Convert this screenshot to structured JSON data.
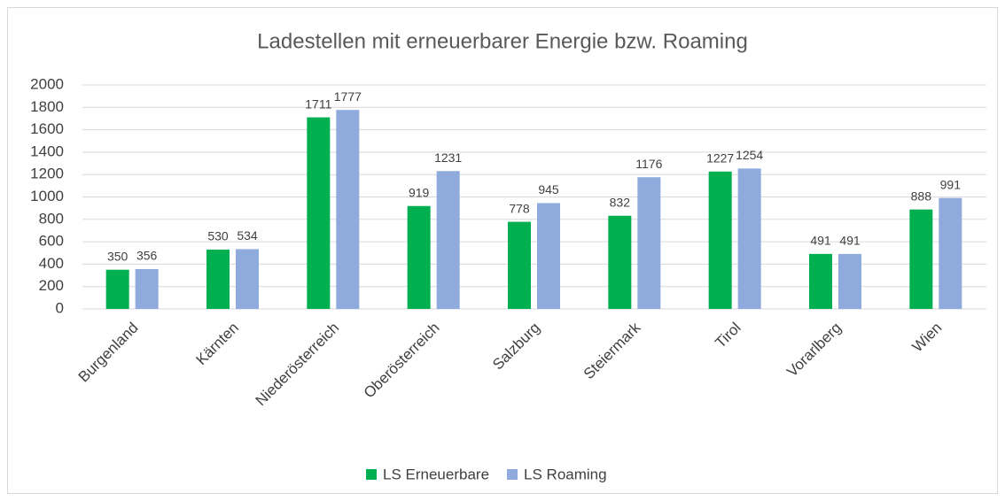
{
  "chart_data": {
    "type": "bar",
    "title": "Ladestellen mit erneuerbarer  Energie bzw. Roaming",
    "categories": [
      "Burgenland",
      "Kärnten",
      "Niederösterreich",
      "Oberösterreich",
      "Salzburg",
      "Steiermark",
      "Tirol",
      "Vorarlberg",
      "Wien"
    ],
    "series": [
      {
        "name": "LS Erneuerbare",
        "color": "#00b050",
        "values": [
          350,
          530,
          1711,
          919,
          778,
          832,
          1227,
          491,
          888
        ]
      },
      {
        "name": "LS Roaming",
        "color": "#8faadc",
        "values": [
          356,
          534,
          1777,
          1231,
          945,
          1176,
          1254,
          491,
          991
        ]
      }
    ],
    "ylim": [
      0,
      2000
    ],
    "yticks": [
      0,
      200,
      400,
      600,
      800,
      1000,
      1200,
      1400,
      1600,
      1800,
      2000
    ],
    "grid": true,
    "legend": "bottom"
  }
}
